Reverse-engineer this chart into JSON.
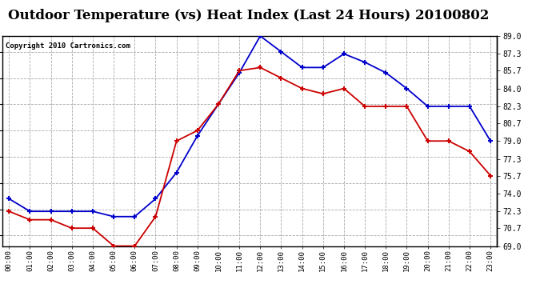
{
  "title": "Outdoor Temperature (vs) Heat Index (Last 24 Hours) 20100802",
  "copyright": "Copyright 2010 Cartronics.com",
  "hours": [
    "00:00",
    "01:00",
    "02:00",
    "03:00",
    "04:00",
    "05:00",
    "06:00",
    "07:00",
    "08:00",
    "09:00",
    "10:00",
    "11:00",
    "12:00",
    "13:00",
    "14:00",
    "15:00",
    "16:00",
    "17:00",
    "18:00",
    "19:00",
    "20:00",
    "21:00",
    "22:00",
    "23:00"
  ],
  "blue_temp": [
    73.5,
    72.3,
    72.3,
    72.3,
    72.3,
    71.8,
    71.8,
    73.5,
    76.0,
    79.5,
    82.5,
    85.5,
    89.0,
    87.5,
    86.0,
    86.0,
    87.3,
    86.5,
    85.5,
    84.0,
    82.3,
    82.3,
    82.3,
    79.0
  ],
  "red_heat": [
    72.3,
    71.5,
    71.5,
    70.7,
    70.7,
    69.0,
    69.0,
    71.8,
    79.0,
    80.0,
    82.5,
    85.7,
    86.0,
    85.0,
    84.0,
    83.5,
    84.0,
    82.3,
    82.3,
    82.3,
    79.0,
    79.0,
    78.0,
    75.7
  ],
  "ylim": [
    69.0,
    89.0
  ],
  "yticks": [
    69.0,
    70.7,
    72.3,
    74.0,
    75.7,
    77.3,
    79.0,
    80.7,
    82.3,
    84.0,
    85.7,
    87.3,
    89.0
  ],
  "bg_color": "#ffffff",
  "plot_bg": "#ffffff",
  "grid_color": "#aaaaaa",
  "blue_color": "#0000cc",
  "red_color": "#cc0000",
  "title_fontsize": 12,
  "copyright_fontsize": 6.5
}
